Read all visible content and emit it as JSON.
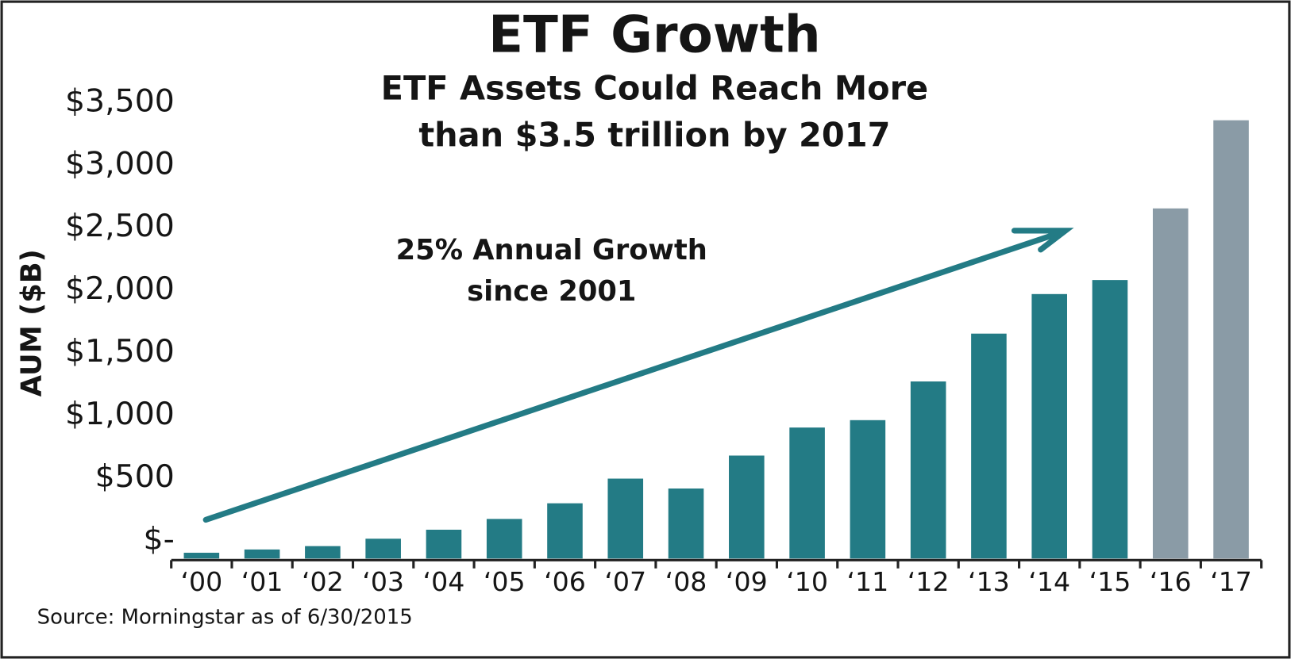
{
  "chart_data": {
    "type": "bar",
    "title": "ETF Growth",
    "subtitle": [
      "ETF Assets Could Reach More",
      "than $3.5 trillion by 2017"
    ],
    "y_axis_label": "AUM ($B)",
    "annotation": [
      "25% Annual Growth",
      "since 2001"
    ],
    "source": "Source: Morningstar as of 6/30/2015",
    "categories": [
      "‘00",
      "‘01",
      "‘02",
      "‘03",
      "‘04",
      "‘05",
      "‘06",
      "‘07",
      "‘08",
      "‘09",
      "‘10",
      "‘11",
      "‘12",
      "‘13",
      "‘14",
      "‘15",
      "‘16",
      "‘17"
    ],
    "values": [
      46,
      72,
      99,
      158,
      230,
      316,
      441,
      638,
      559,
      822,
      1046,
      1105,
      1414,
      1796,
      2112,
      2224,
      2796,
      3500
    ],
    "colors": [
      "#237b85",
      "#237b85",
      "#237b85",
      "#237b85",
      "#237b85",
      "#237b85",
      "#237b85",
      "#237b85",
      "#237b85",
      "#237b85",
      "#237b85",
      "#237b85",
      "#237b85",
      "#237b85",
      "#237b85",
      "#237b85",
      "#8a9ba6",
      "#8a9ba6"
    ],
    "ylim": [
      0,
      3500
    ],
    "yticks": [
      {
        "value": 0,
        "label": "$-"
      },
      {
        "value": 500,
        "label": "$500"
      },
      {
        "value": 1000,
        "label": "$1,000"
      },
      {
        "value": 1500,
        "label": "$1,500"
      },
      {
        "value": 2000,
        "label": "$2,000"
      },
      {
        "value": 2500,
        "label": "$2,500"
      },
      {
        "value": 3000,
        "label": "$3,000"
      },
      {
        "value": 3500,
        "label": "$3,500"
      }
    ],
    "grid": false
  }
}
